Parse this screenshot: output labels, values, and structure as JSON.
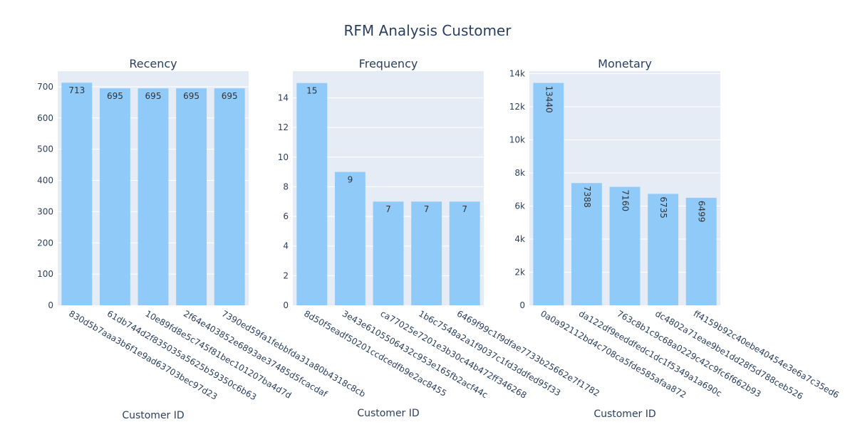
{
  "title": "RFM Analysis Customer",
  "colors": {
    "plot_bg": "#E5ECF6",
    "bar": "#90CAF9",
    "grid": "#FFFFFF",
    "text": "#2A3F5F",
    "label_text": "#333333"
  },
  "chart_data": [
    {
      "type": "bar",
      "title": "Recency",
      "xlabel": "Customer ID",
      "ylabel": "",
      "ylim": [
        0,
        750
      ],
      "yticks": [
        0,
        100,
        200,
        300,
        400,
        500,
        600,
        700
      ],
      "ytick_labels": [
        "0",
        "100",
        "200",
        "300",
        "400",
        "500",
        "600",
        "700"
      ],
      "categories": [
        "830d5b7aaa3b6f1e9ad63703bec97d23",
        "61db744d2f835035a5625b59350c6b63",
        "10e89fd8e5c745f81bec101207ba4d7d",
        "2f64e403852e6893ae37485d5fcacdaf",
        "7390ed59fa1febbfda31a80b4318c8cb"
      ],
      "values": [
        713,
        695,
        695,
        695,
        695
      ],
      "data_labels": [
        "713",
        "695",
        "695",
        "695",
        "695"
      ],
      "label_rotation": 0
    },
    {
      "type": "bar",
      "title": "Frequency",
      "xlabel": "Customer ID",
      "ylabel": "",
      "ylim": [
        0,
        15.8
      ],
      "yticks": [
        0,
        2,
        4,
        6,
        8,
        10,
        12,
        14
      ],
      "ytick_labels": [
        "0",
        "2",
        "4",
        "6",
        "8",
        "10",
        "12",
        "14"
      ],
      "categories": [
        "8d50f5eadf50201ccdcedfb9e2ac8455",
        "3e43e6105506432c953e165fb2acf44c",
        "ca77025e7201e3b30c44b472ff346268",
        "1b6c7548a2a1f9037c1fd3ddfed95f33",
        "6469f99c1f9dfae7733b25662e7f1782"
      ],
      "values": [
        15,
        9,
        7,
        7,
        7
      ],
      "data_labels": [
        "15",
        "9",
        "7",
        "7",
        "7"
      ],
      "label_rotation": 0
    },
    {
      "type": "bar",
      "title": "Monetary",
      "xlabel": "Customer ID",
      "ylabel": "",
      "ylim": [
        0,
        14150
      ],
      "yticks": [
        0,
        2000,
        4000,
        6000,
        8000,
        10000,
        12000,
        14000
      ],
      "ytick_labels": [
        "0",
        "2k",
        "4k",
        "6k",
        "8k",
        "10k",
        "12k",
        "14k"
      ],
      "categories": [
        "0a0a92112bd4c708ca5fde585afaa872",
        "da122df9eeddfedc1dc1f5349a1a690c",
        "763c8b1c9c68a0229c42c9fc6f662b93",
        "dc4802a71eae9be1dd28f5d788ceb526",
        "ff4159b92c40ebe40454e3e6a7c35ed6"
      ],
      "values": [
        13440,
        7388,
        7160,
        6735,
        6499
      ],
      "data_labels": [
        "13440",
        "7388",
        "7160",
        "6735",
        "6499"
      ],
      "label_rotation": 90
    }
  ]
}
